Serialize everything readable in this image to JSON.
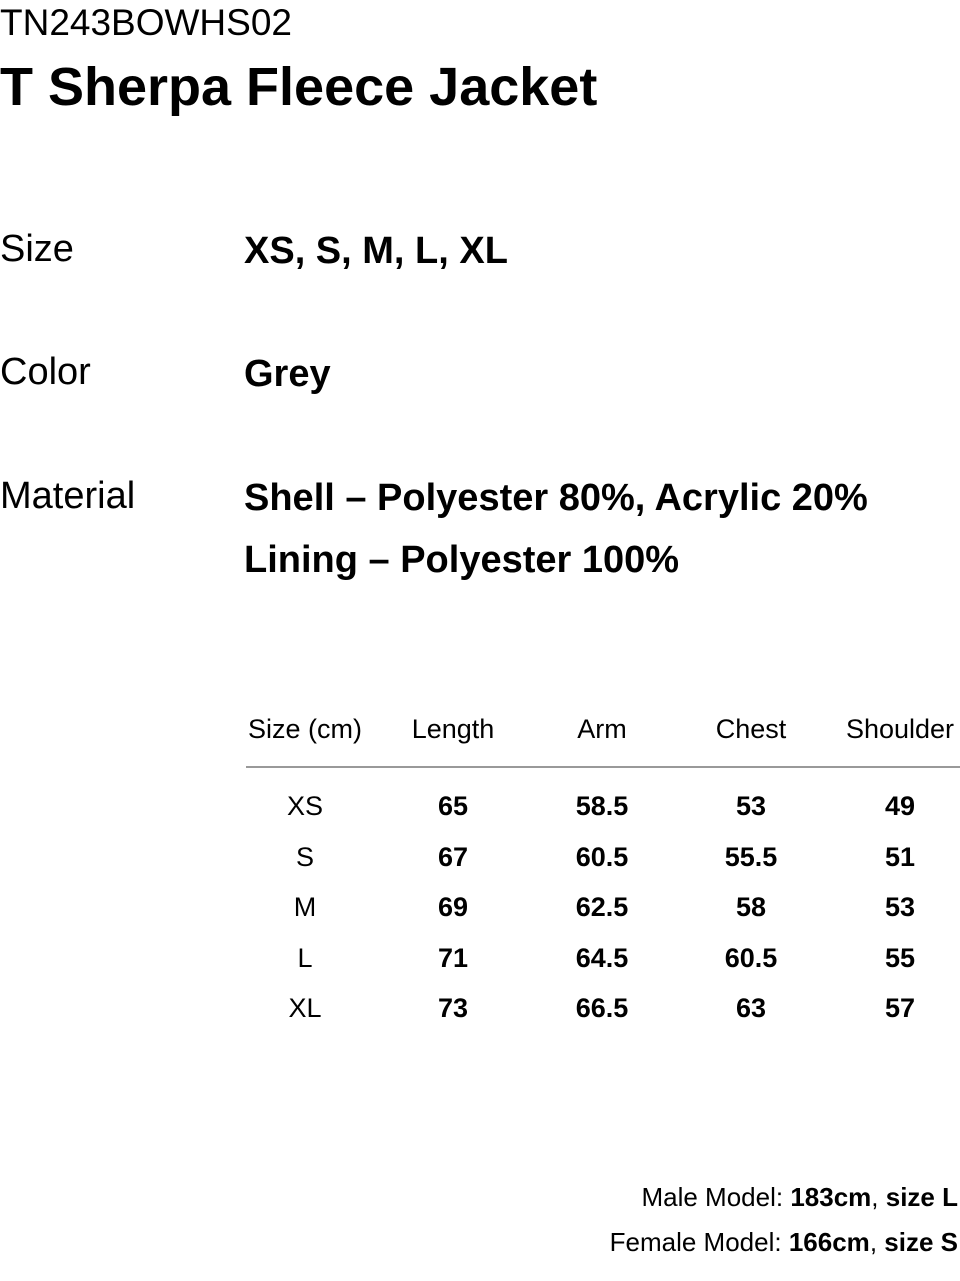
{
  "header": {
    "code": "TN243BOWHS02",
    "title": "T Sherpa Fleece Jacket"
  },
  "specs": [
    {
      "label": "Size",
      "lines": [
        "XS, S, M, L, XL"
      ]
    },
    {
      "label": "Color",
      "lines": [
        "Grey"
      ]
    },
    {
      "label": "Material",
      "lines": [
        "Shell – Polyester 80%, Acrylic 20%",
        "Lining – Polyester 100%"
      ]
    }
  ],
  "table": {
    "columns": [
      "Size (cm)",
      "Length",
      "Arm",
      "Chest",
      "Shoulder"
    ],
    "rows": [
      [
        "XS",
        "65",
        "58.5",
        "53",
        "49"
      ],
      [
        "S",
        "67",
        "60.5",
        "55.5",
        "51"
      ],
      [
        "M",
        "69",
        "62.5",
        "58",
        "53"
      ],
      [
        "L",
        "71",
        "64.5",
        "60.5",
        "55"
      ],
      [
        "XL",
        "73",
        "66.5",
        "63",
        "57"
      ]
    ]
  },
  "models": [
    {
      "label": "Male Model:",
      "height": "183cm",
      "separator": ",",
      "size": "size L"
    },
    {
      "label": "Female Model:",
      "height": "166cm",
      "separator": ",",
      "size": "size S"
    }
  ]
}
